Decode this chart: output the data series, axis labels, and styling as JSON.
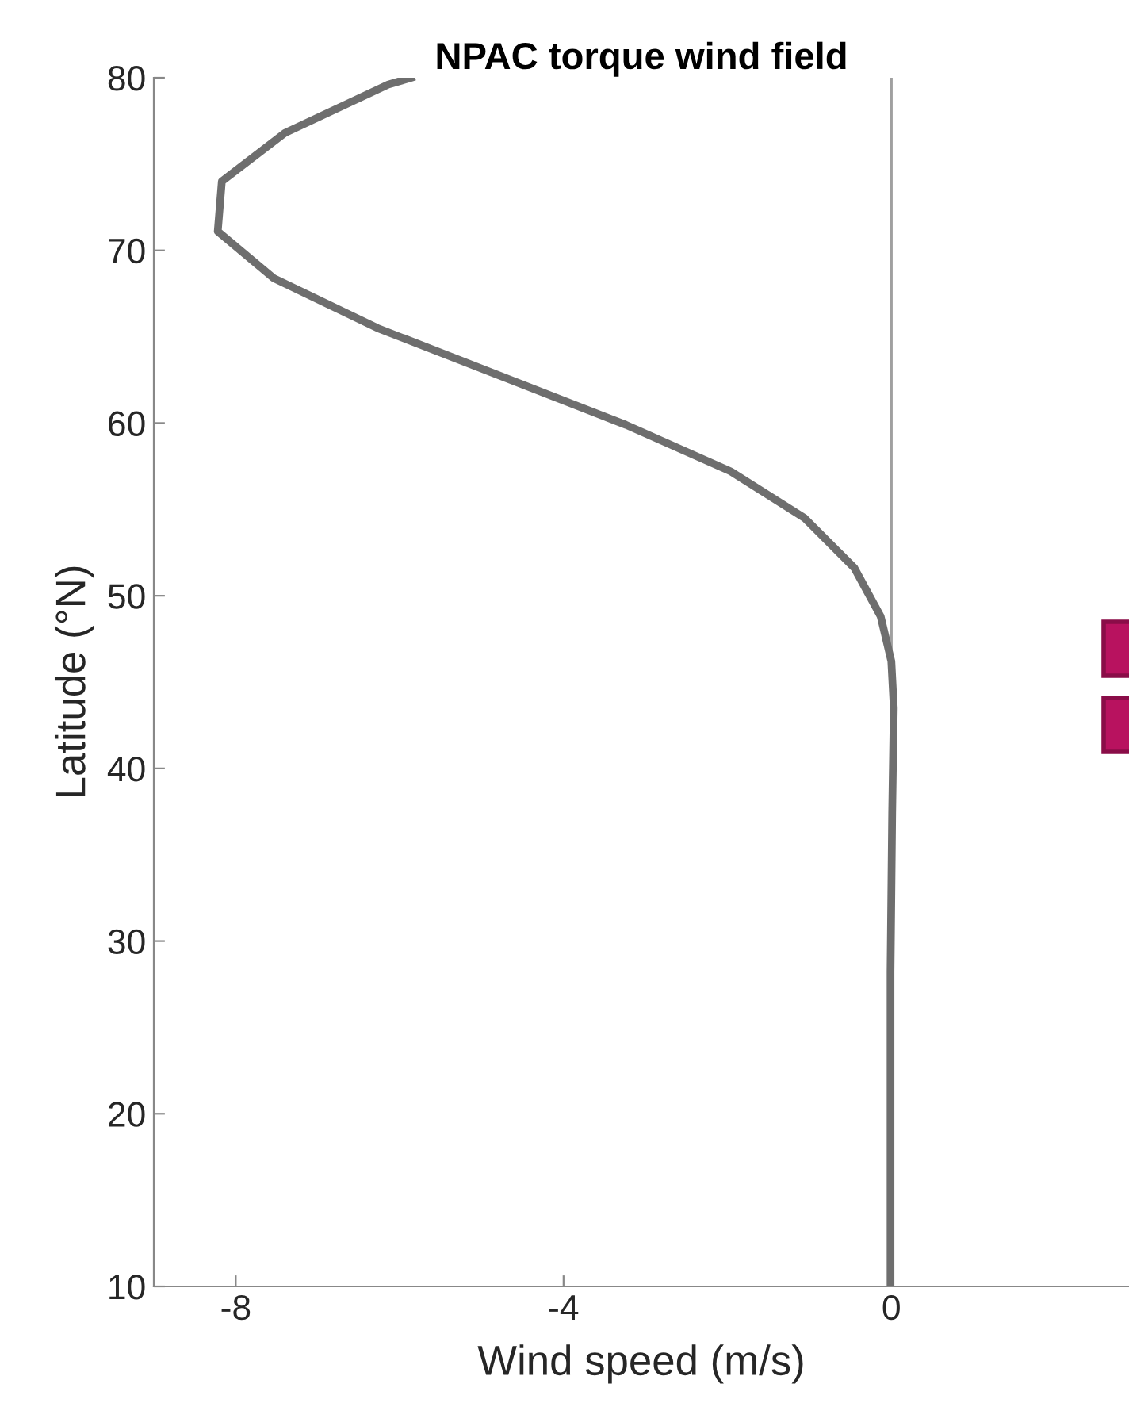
{
  "chart_data": {
    "type": "line",
    "title": "NPAC torque wind field",
    "xlabel": "Wind speed (m/s)",
    "ylabel": "Latitude (°N)",
    "series": [
      {
        "color": "#6e6e6e",
        "x": [
          -5.86,
          -6.14,
          -7.4,
          -8.17,
          -8.22,
          -7.54,
          -6.27,
          -3.24,
          -1.96,
          -1.06,
          -0.45,
          -0.13,
          0.0,
          0.03,
          0.01,
          -0.01,
          -0.01
        ],
        "values": [
          80.0,
          79.6,
          76.8,
          74.0,
          71.1,
          68.4,
          65.5,
          59.9,
          57.2,
          54.5,
          51.6,
          48.8,
          46.2,
          43.5,
          37.4,
          28.2,
          10.1
        ]
      }
    ],
    "xlim": [
      -9,
      2.9
    ],
    "xticks": [
      {
        "value": -8,
        "label": "-8"
      },
      {
        "value": -4,
        "label": "-4"
      },
      0
    ],
    "ylim": [
      10,
      80
    ],
    "yticks": [
      10,
      20,
      30,
      40,
      50,
      60,
      70,
      80
    ],
    "ref_lines": [
      {
        "axis": "x",
        "value": 0,
        "color": "#a0a0a0"
      }
    ],
    "grid": false,
    "legend": false,
    "marker": "none",
    "line_style": "solid"
  }
}
